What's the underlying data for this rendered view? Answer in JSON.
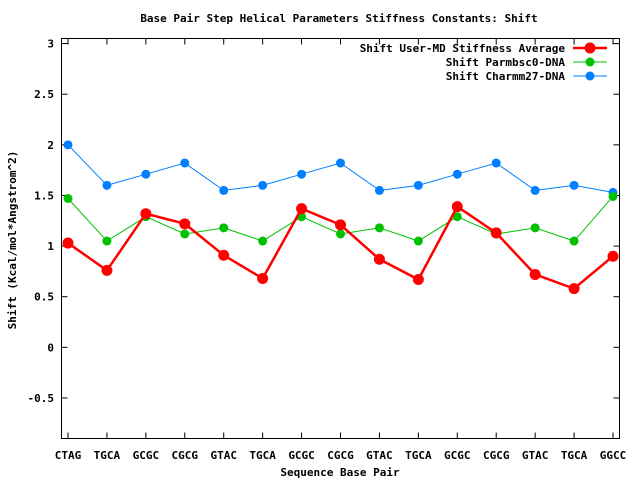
{
  "chart_data": {
    "type": "line",
    "title": "Base Pair Step Helical Parameters Stiffness Constants: Shift",
    "xlabel": "Sequence Base Pair",
    "ylabel": "Shift (Kcal/mol*Angstrom^2)",
    "categories": [
      "CTAG",
      "TGCA",
      "GCGC",
      "CGCG",
      "GTAC",
      "TGCA",
      "GCGC",
      "CGCG",
      "GTAC",
      "TGCA",
      "GCGC",
      "CGCG",
      "GTAC",
      "TGCA",
      "GGCC"
    ],
    "ylim": [
      -0.9,
      3.05
    ],
    "yticks": [
      -0.5,
      0,
      0.5,
      1,
      1.5,
      2,
      2.5,
      3
    ],
    "ytick_labels": [
      "-0.5",
      "0",
      "0.5",
      "1",
      "1.5",
      "2",
      "2.5",
      "3"
    ],
    "grid": false,
    "legend_position": "top-right",
    "series": [
      {
        "name": "Shift User-MD Stiffness Average",
        "color": "#ff0000",
        "values": [
          1.03,
          0.76,
          1.32,
          1.22,
          0.91,
          0.68,
          1.37,
          1.21,
          0.87,
          0.67,
          1.39,
          1.13,
          0.72,
          0.58,
          0.9
        ]
      },
      {
        "name": "Shift Parmbsc0-DNA",
        "color": "#00c000",
        "values": [
          1.47,
          1.05,
          1.29,
          1.12,
          1.18,
          1.05,
          1.29,
          1.12,
          1.18,
          1.05,
          1.29,
          1.12,
          1.18,
          1.05,
          1.49
        ]
      },
      {
        "name": "Shift Charmm27-DNA",
        "color": "#0080ff",
        "values": [
          2.0,
          1.6,
          1.71,
          1.82,
          1.55,
          1.6,
          1.71,
          1.82,
          1.55,
          1.6,
          1.71,
          1.82,
          1.55,
          1.6,
          1.53
        ]
      }
    ]
  }
}
